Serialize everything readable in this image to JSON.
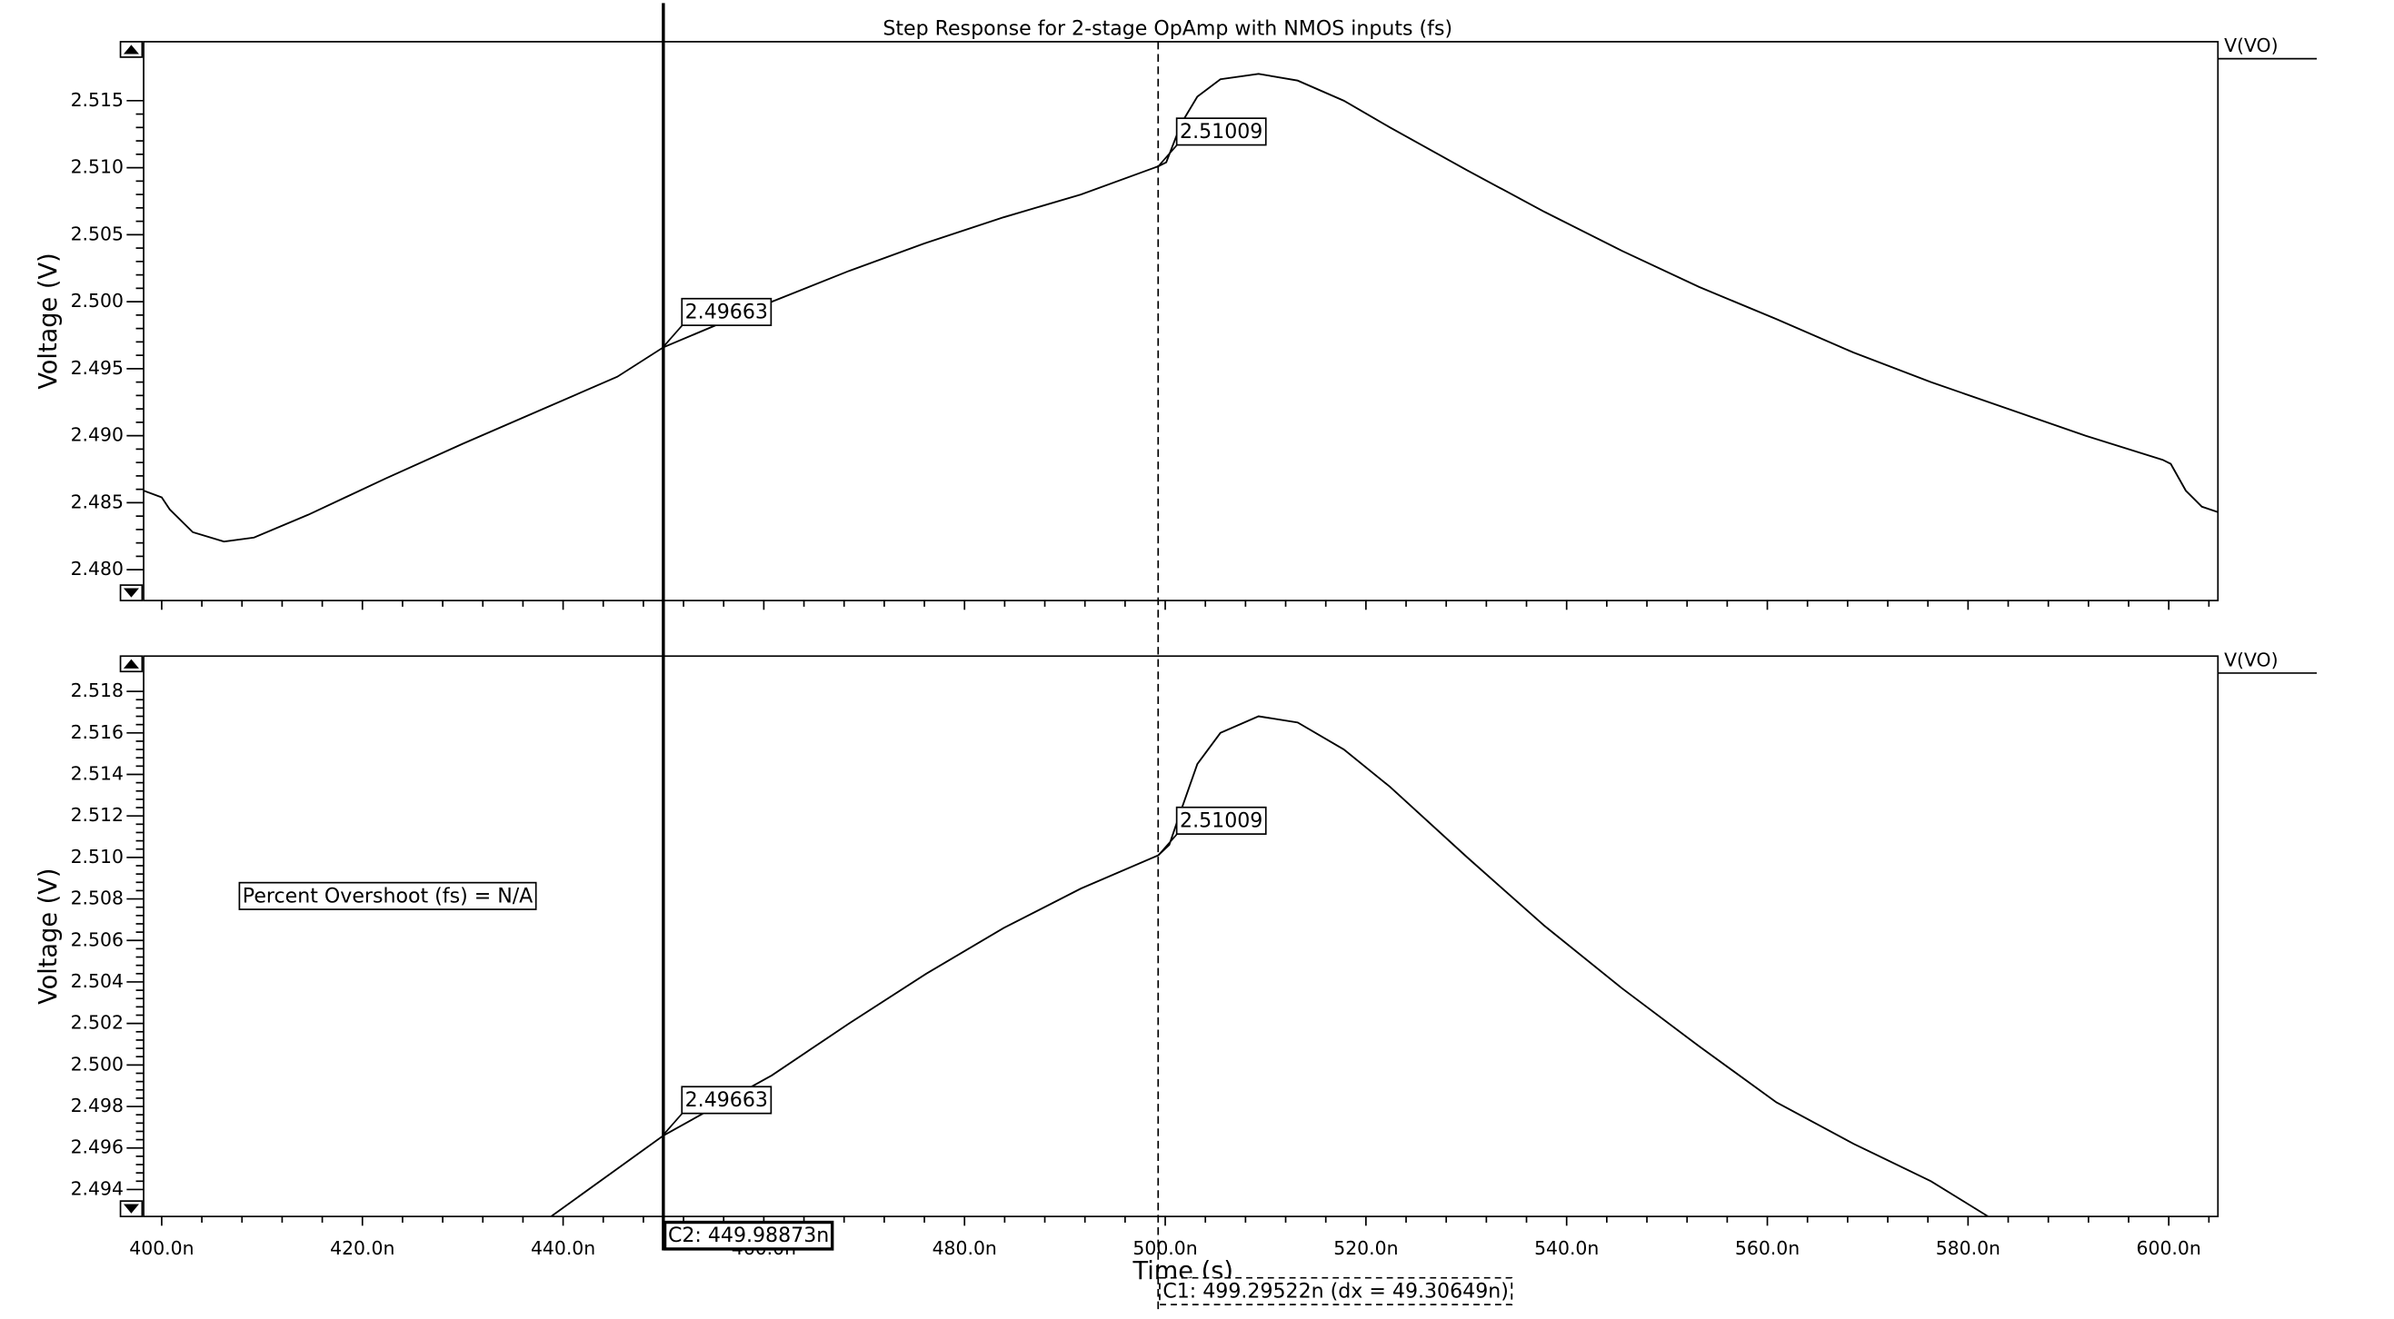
{
  "chart_data": [
    {
      "type": "line",
      "title": "Step Response for 2-stage OpAmp with NMOS inputs (fs)",
      "y_label": "Voltage (V)",
      "xlim": [
        398.2,
        604.9
      ],
      "ylim": [
        2.4777,
        2.5194
      ],
      "yticks": [
        {
          "value": 2.48,
          "label": "2.480"
        },
        2.485,
        {
          "value": 2.49,
          "label": "2.490"
        },
        2.495,
        {
          "value": 2.5,
          "label": "2.500"
        },
        2.505,
        {
          "value": 2.51,
          "label": "2.510"
        },
        2.515
      ],
      "series": [
        {
          "name": "V(VO)",
          "color": "#000000",
          "x": [
            398.2,
            400,
            400.8,
            403.1,
            406.2,
            409.2,
            414.6,
            422.3,
            430.0,
            437.7,
            445.4,
            450.0,
            460.8,
            468.5,
            476.2,
            483.9,
            491.6,
            499.3,
            500.1,
            501.6,
            503.2,
            505.5,
            509.3,
            513.2,
            517.8,
            522.4,
            530.1,
            537.8,
            545.5,
            553.2,
            560.9,
            568.6,
            576.3,
            584.0,
            591.7,
            599.4,
            600.2,
            601.7,
            603.3,
            604.9
          ],
          "values": [
            2.4859,
            2.4854,
            2.4845,
            2.4828,
            2.4821,
            2.4824,
            2.4841,
            2.4868,
            2.4894,
            2.4919,
            2.4944,
            2.4966,
            2.5,
            2.5023,
            2.5044,
            2.5063,
            2.508,
            2.5101,
            2.5104,
            2.5133,
            2.5153,
            2.5166,
            2.517,
            2.5165,
            2.515,
            2.513,
            2.5098,
            2.5067,
            2.5038,
            2.5011,
            2.4987,
            2.4962,
            2.494,
            2.492,
            2.49,
            2.4882,
            2.4879,
            2.4859,
            2.4847,
            2.4843
          ]
        }
      ],
      "markers": [
        {
          "x": 449.98873,
          "y": 2.49663
        },
        {
          "x": 499.29522,
          "y": 2.51009
        }
      ]
    },
    {
      "type": "line",
      "y_label": "Voltage (V)",
      "x_label": "Time (s)",
      "xlim": [
        398.2,
        604.9
      ],
      "ylim": [
        2.4927,
        2.5197
      ],
      "xticks": [
        {
          "value": 400,
          "label": "400.0n"
        },
        {
          "value": 420,
          "label": "420.0n"
        },
        {
          "value": 440,
          "label": "440.0n"
        },
        {
          "value": 460,
          "label": "460.0n"
        },
        {
          "value": 480,
          "label": "480.0n"
        },
        {
          "value": 500,
          "label": "500.0n"
        },
        {
          "value": 520,
          "label": "520.0n"
        },
        {
          "value": 540,
          "label": "540.0n"
        },
        {
          "value": 560,
          "label": "560.0n"
        },
        {
          "value": 580,
          "label": "580.0n"
        },
        {
          "value": 600,
          "label": "600.0n"
        }
      ],
      "yticks": [
        2.494,
        2.496,
        2.498,
        {
          "value": 2.5,
          "label": "2.500"
        },
        2.502,
        2.504,
        2.506,
        2.508,
        {
          "value": 2.51,
          "label": "2.510"
        },
        2.512,
        2.514,
        2.516,
        2.518
      ],
      "series": [
        {
          "name": "V(VO)",
          "color": "#000000",
          "x": [
            438.8,
            445.4,
            450.0,
            460.8,
            468.5,
            476.2,
            483.9,
            491.6,
            499.3,
            500.4,
            501.6,
            503.2,
            505.5,
            509.3,
            513.2,
            517.8,
            522.4,
            530.1,
            537.8,
            545.5,
            553.2,
            560.9,
            568.6,
            576.3,
            582.0
          ],
          "values": [
            2.4927,
            2.495,
            2.4966,
            2.4995,
            2.502,
            2.5044,
            2.5066,
            2.5085,
            2.5101,
            2.5106,
            2.5123,
            2.5145,
            2.516,
            2.5168,
            2.5165,
            2.5152,
            2.5134,
            2.51,
            2.5067,
            2.5037,
            2.5009,
            2.4982,
            2.4962,
            2.4944,
            2.4927
          ]
        }
      ],
      "markers": [
        {
          "x": 449.98873,
          "y": 2.49663
        },
        {
          "x": 499.29522,
          "y": 2.51009
        }
      ],
      "annotation": "Percent Overshoot (fs) = N/A",
      "cursors": [
        {
          "x": 449.98873,
          "label": "C2: 449.98873n"
        },
        {
          "x": 499.29522,
          "label": "C1: 499.29522n (dx = 49.30649n)"
        }
      ]
    }
  ]
}
